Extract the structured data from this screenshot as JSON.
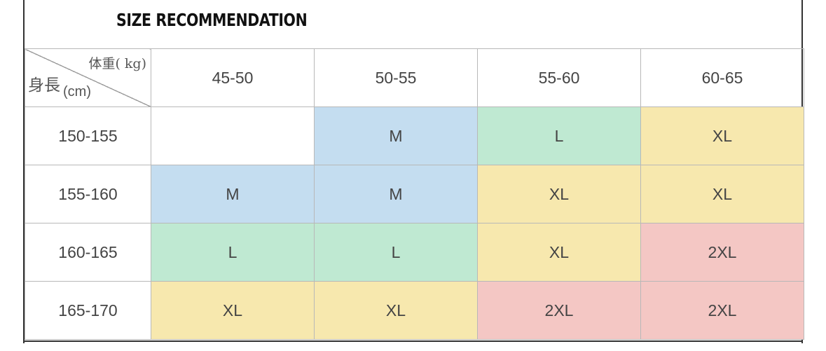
{
  "title": "SIZE RECOMMENDATION",
  "corner": {
    "weight_label": "体重( kg)",
    "height_label": "身長",
    "height_unit": "(cm)"
  },
  "weight_columns": [
    "45-50",
    "50-55",
    "55-60",
    "60-65"
  ],
  "rows": [
    {
      "height": "150-155",
      "sizes": [
        "",
        "M",
        "L",
        "XL"
      ]
    },
    {
      "height": "155-160",
      "sizes": [
        "M",
        "M",
        "XL",
        "XL"
      ]
    },
    {
      "height": "160-165",
      "sizes": [
        "L",
        "L",
        "XL",
        "2XL"
      ]
    },
    {
      "height": "165-170",
      "sizes": [
        "XL",
        "XL",
        "2XL",
        "2XL"
      ]
    }
  ],
  "size_colors": {
    "M": "#c4ddf0",
    "L": "#bfe9d2",
    "XL": "#f7e8ae",
    "2XL": "#f4c7c4"
  }
}
